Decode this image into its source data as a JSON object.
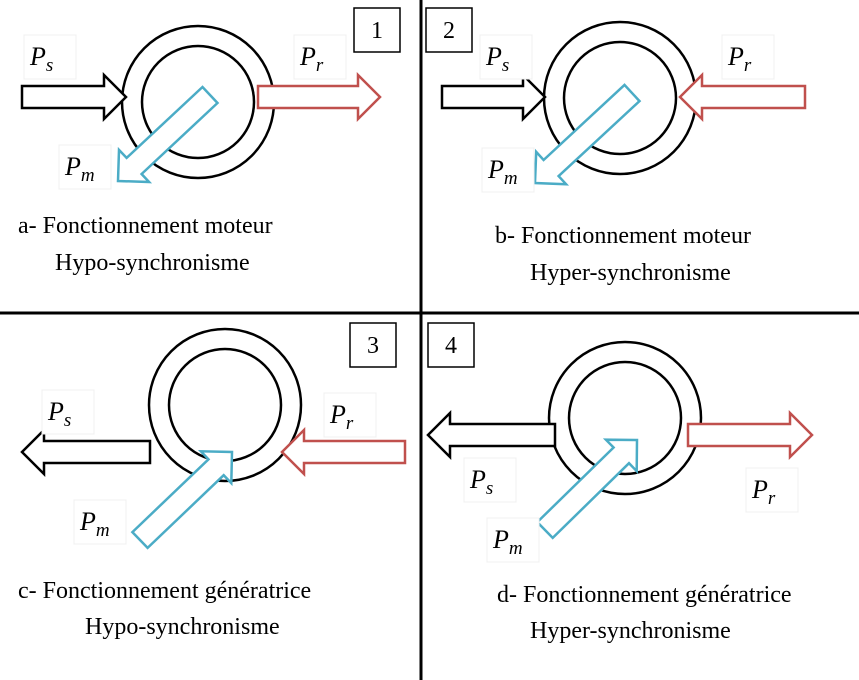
{
  "quadrants": [
    {
      "number": "1",
      "caption": [
        "a-   Fonctionnement moteur",
        "Hypo-synchronisme"
      ],
      "labels": {
        "ps": {
          "main": "P",
          "sub": "s"
        },
        "pr": {
          "main": "P",
          "sub": "r"
        },
        "pm": {
          "main": "P",
          "sub": "m"
        }
      }
    },
    {
      "number": "2",
      "caption": [
        "b- Fonctionnement moteur",
        "Hyper-synchronisme"
      ],
      "labels": {
        "ps": {
          "main": "P",
          "sub": "s"
        },
        "pr": {
          "main": "P",
          "sub": "r"
        },
        "pm": {
          "main": "P",
          "sub": "m"
        }
      }
    },
    {
      "number": "3",
      "caption": [
        "c- Fonctionnement génératrice",
        "Hypo-synchronisme"
      ],
      "labels": {
        "ps": {
          "main": "P",
          "sub": "s"
        },
        "pr": {
          "main": "P",
          "sub": "r"
        },
        "pm": {
          "main": "P",
          "sub": "m"
        }
      }
    },
    {
      "number": "4",
      "caption": [
        "d- Fonctionnement génératrice",
        "Hyper-synchronisme"
      ],
      "labels": {
        "ps": {
          "main": "P",
          "sub": "s"
        },
        "pr": {
          "main": "P",
          "sub": "r"
        },
        "pm": {
          "main": "P",
          "sub": "m"
        }
      }
    }
  ]
}
